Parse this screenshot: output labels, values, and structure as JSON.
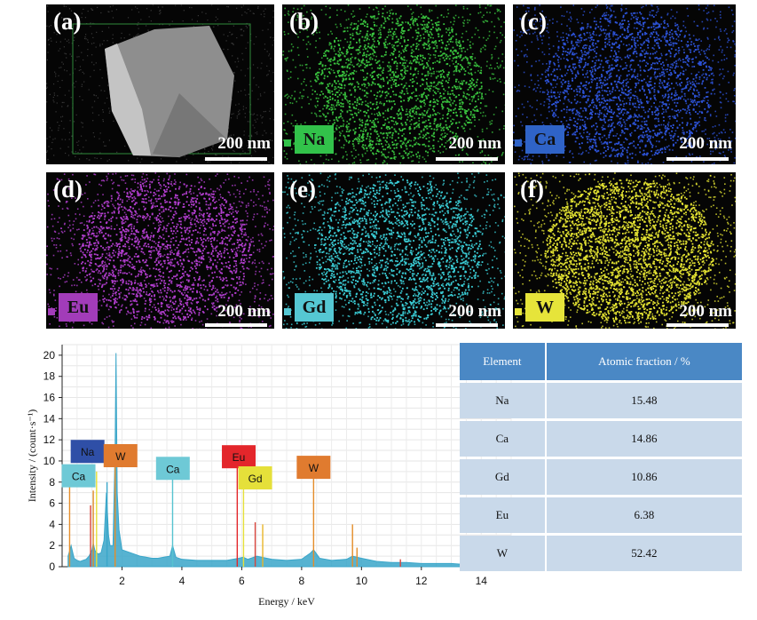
{
  "panels": [
    {
      "id": "a",
      "label": "(a)",
      "scale": "200 nm",
      "kind": "sem",
      "element": "",
      "color": "#bdbdbd"
    },
    {
      "id": "b",
      "label": "(b)",
      "scale": "200 nm",
      "kind": "map",
      "element": "Na",
      "color": "#39c23e",
      "box": "#32c24a"
    },
    {
      "id": "c",
      "label": "(c)",
      "scale": "200 nm",
      "kind": "map",
      "element": "Ca",
      "color": "#2d53d8",
      "box": "#2f63c7"
    },
    {
      "id": "d",
      "label": "(d)",
      "scale": "200 nm",
      "kind": "map",
      "element": "Eu",
      "color": "#b33ed0",
      "box": "#a23cb9"
    },
    {
      "id": "e",
      "label": "(e)",
      "scale": "200 nm",
      "kind": "map",
      "element": "Gd",
      "color": "#3bcfd8",
      "box": "#55c7d3"
    },
    {
      "id": "f",
      "label": "(f)",
      "scale": "200 nm",
      "kind": "map",
      "element": "W",
      "color": "#e4e332",
      "box": "#e6e43a"
    }
  ],
  "table": {
    "headers": [
      "Element",
      "Atomic fraction / %"
    ],
    "rows": [
      {
        "element": "Na",
        "fraction": "15.48"
      },
      {
        "element": "Ca",
        "fraction": "14.86"
      },
      {
        "element": "Gd",
        "fraction": "10.86"
      },
      {
        "element": "Eu",
        "fraction": "6.38"
      },
      {
        "element": "W",
        "fraction": "52.42"
      }
    ]
  },
  "chart_data": {
    "type": "line",
    "title": "",
    "xlabel": "Energy / keV",
    "ylabel": "Intensity / (count·s⁻¹)",
    "xlim": [
      0,
      15
    ],
    "ylim": [
      0,
      21
    ],
    "xticks": [
      2,
      4,
      6,
      8,
      10,
      12,
      14
    ],
    "yticks": [
      0,
      2,
      4,
      6,
      8,
      10,
      12,
      14,
      16,
      18,
      20
    ],
    "grid": true,
    "series": [
      {
        "color": "#3aa6c9",
        "x": [
          0.2,
          0.3,
          0.4,
          0.5,
          0.6,
          0.7,
          0.8,
          0.9,
          1.0,
          1.04,
          1.1,
          1.2,
          1.3,
          1.4,
          1.48,
          1.55,
          1.6,
          1.7,
          1.77,
          1.8,
          1.84,
          1.9,
          2.0,
          2.2,
          2.4,
          2.6,
          2.8,
          3.0,
          3.2,
          3.4,
          3.6,
          3.69,
          3.8,
          4.0,
          4.5,
          5.0,
          5.5,
          5.9,
          6.05,
          6.2,
          6.5,
          7.0,
          7.5,
          8.0,
          8.3,
          8.4,
          8.6,
          9.0,
          9.5,
          9.7,
          10.0,
          10.5,
          11.0,
          11.5,
          12.0,
          12.5,
          13.0,
          13.5,
          14.0,
          15.0
        ],
        "y": [
          1.0,
          2.0,
          0.8,
          0.6,
          0.5,
          0.6,
          0.7,
          1.0,
          1.6,
          2.2,
          1.5,
          1.2,
          1.3,
          2.5,
          7.0,
          3.0,
          2.0,
          2.0,
          11.0,
          20.2,
          7.0,
          3.5,
          1.6,
          1.4,
          1.2,
          1.0,
          0.9,
          0.8,
          0.8,
          0.9,
          1.0,
          2.0,
          0.9,
          0.7,
          0.6,
          0.6,
          0.6,
          0.8,
          0.9,
          0.7,
          1.0,
          0.7,
          0.6,
          0.7,
          1.3,
          1.6,
          0.8,
          0.6,
          0.7,
          1.0,
          0.8,
          0.5,
          0.4,
          0.4,
          0.3,
          0.3,
          0.3,
          0.2,
          0.2,
          0.1
        ]
      }
    ],
    "peak_lines": [
      {
        "x": 0.25,
        "y": 9.5,
        "color": "#e48d2a"
      },
      {
        "x": 0.95,
        "y": 5.8,
        "color": "#d8443c"
      },
      {
        "x": 1.04,
        "y": 7.2,
        "color": "#e08a28"
      },
      {
        "x": 1.15,
        "y": 9.0,
        "color": "#e5e03a"
      },
      {
        "x": 1.5,
        "y": 8.0,
        "color": "#3aa6c9"
      },
      {
        "x": 1.77,
        "y": 9.5,
        "color": "#e48d2a"
      },
      {
        "x": 3.69,
        "y": 8.5,
        "color": "#56c3d0"
      },
      {
        "x": 5.85,
        "y": 9.6,
        "color": "#e3262b"
      },
      {
        "x": 6.06,
        "y": 8.2,
        "color": "#e5e03a"
      },
      {
        "x": 6.45,
        "y": 4.2,
        "color": "#d8443c"
      },
      {
        "x": 6.7,
        "y": 4.0,
        "color": "#e8b62a"
      },
      {
        "x": 8.4,
        "y": 8.5,
        "color": "#e48d2a"
      },
      {
        "x": 9.7,
        "y": 4.0,
        "color": "#e48d2a"
      },
      {
        "x": 9.85,
        "y": 1.8,
        "color": "#e48d2a"
      },
      {
        "x": 11.3,
        "y": 0.7,
        "color": "#d8443c"
      }
    ],
    "annotations": [
      {
        "text": "Na",
        "x": 0.85,
        "y": 10.9,
        "bg": "#2f4fa7",
        "fg": "#111111"
      },
      {
        "text": "W",
        "x": 1.95,
        "y": 10.5,
        "bg": "#e07b2f",
        "fg": "#111111"
      },
      {
        "text": "Ca",
        "x": 0.55,
        "y": 8.6,
        "bg": "#6ec9d6",
        "fg": "#111111"
      },
      {
        "text": "Ca",
        "x": 3.7,
        "y": 9.3,
        "bg": "#6ec9d6",
        "fg": "#111111"
      },
      {
        "text": "Eu",
        "x": 5.9,
        "y": 10.4,
        "bg": "#e3262b",
        "fg": "#111111"
      },
      {
        "text": "Gd",
        "x": 6.45,
        "y": 8.4,
        "bg": "#e5e03a",
        "fg": "#111111"
      },
      {
        "text": "W",
        "x": 8.4,
        "y": 9.4,
        "bg": "#e07b2f",
        "fg": "#111111"
      }
    ]
  }
}
